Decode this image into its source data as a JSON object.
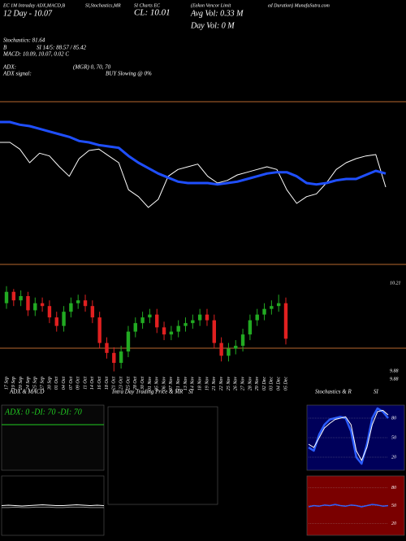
{
  "header": {
    "row1": [
      "EC 1M Intraday ADX,MACD,B",
      "SI,Stochastics,MR",
      "SI Charts EC",
      "(Eekon Vencor Limit",
      "ed Duration) MunafaSutra.com"
    ],
    "day": "12 Day - 10.07",
    "close": "CL: 10.01",
    "avg_vol": "Avg Vol: 0.33 M",
    "day_vol": "Day Vol: 0 M",
    "stoch": "Stochastics: 81.64",
    "b": "B",
    "si": "SI 14/5: 88.57 / 85.42",
    "macd": "MACD: 10.09, 10.07, 0.02 C",
    "adx": "ADX:",
    "adx_values": "(MGR) 0, 70, 70",
    "adx_signal": "ADX signal:",
    "signal": "BUY Slowing @ 0%"
  },
  "chart_data": [
    {
      "type": "line",
      "ylim": [
        9.4,
        10.6
      ],
      "series": [
        {
          "color": "#ffffff",
          "values": [
            10.3,
            10.3,
            10.25,
            10.15,
            10.22,
            10.2,
            10.12,
            10.05,
            10.18,
            10.24,
            10.25,
            10.2,
            10.15,
            9.95,
            9.9,
            9.82,
            9.88,
            10.05,
            10.1,
            10.12,
            10.14,
            10.05,
            10.0,
            10.02,
            10.06,
            10.08,
            10.1,
            10.12,
            10.1,
            9.95,
            9.85,
            9.9,
            9.92,
            10.0,
            10.1,
            10.15,
            10.18,
            10.2,
            10.21,
            9.97
          ]
        },
        {
          "color": "#1f4fff",
          "values": [
            10.45,
            10.45,
            10.43,
            10.42,
            10.4,
            10.38,
            10.36,
            10.34,
            10.31,
            10.3,
            10.28,
            10.27,
            10.26,
            10.2,
            10.15,
            10.11,
            10.07,
            10.04,
            10.01,
            10.0,
            10.0,
            10.0,
            9.99,
            10.0,
            10.01,
            10.03,
            10.05,
            10.07,
            10.08,
            10.08,
            10.05,
            10.0,
            9.99,
            10.0,
            10.02,
            10.03,
            10.03,
            10.06,
            10.09,
            10.07
          ]
        }
      ]
    },
    {
      "type": "candlestick",
      "ylim": [
        9.7,
        10.33
      ],
      "up_color": "#22aa22",
      "down_color": "#e02020",
      "x": [
        "17 Sep",
        "19 Sep",
        "20 Sep",
        "24 Sep",
        "25 Sep",
        "27 Sep",
        "30 Sep",
        "01 Oct",
        "04 Oct",
        "07 Oct",
        "09 Oct",
        "11 Oct",
        "14 Oct",
        "16 Oct",
        "18 Oct",
        "21 Oct",
        "23 Oct",
        "25 Oct",
        "28 Oct",
        "30 Oct",
        "01 Nov",
        "05 Nov",
        "06 Nov",
        "07 Nov",
        "11 Nov",
        "13 Nov",
        "14 Nov",
        "18 Nov",
        "19 Nov",
        "21 Nov",
        "22 Nov",
        "25 Nov",
        "26 Nov",
        "27 Nov",
        "28 Nov",
        "29 Nov",
        "02 Dec",
        "03 Dec",
        "04 Dec",
        "05 Dec"
      ],
      "ohlc": [
        [
          10.2,
          10.32,
          10.16,
          10.28
        ],
        [
          10.28,
          10.3,
          10.18,
          10.22
        ],
        [
          10.22,
          10.29,
          10.18,
          10.25
        ],
        [
          10.25,
          10.28,
          10.11,
          10.15
        ],
        [
          10.15,
          10.24,
          10.11,
          10.2
        ],
        [
          10.2,
          10.24,
          10.14,
          10.18
        ],
        [
          10.18,
          10.22,
          10.06,
          10.1
        ],
        [
          10.1,
          10.14,
          10.0,
          10.04
        ],
        [
          10.04,
          10.18,
          10.0,
          10.14
        ],
        [
          10.14,
          10.24,
          10.1,
          10.2
        ],
        [
          10.2,
          10.26,
          10.16,
          10.22
        ],
        [
          10.22,
          10.26,
          10.14,
          10.18
        ],
        [
          10.18,
          10.22,
          10.06,
          10.1
        ],
        [
          10.1,
          10.14,
          9.88,
          9.92
        ],
        [
          9.92,
          9.96,
          9.81,
          9.85
        ],
        [
          9.85,
          9.89,
          9.72,
          9.78
        ],
        [
          9.78,
          9.9,
          9.74,
          9.86
        ],
        [
          9.86,
          10.04,
          9.82,
          10.0
        ],
        [
          10.0,
          10.1,
          9.96,
          10.06
        ],
        [
          10.06,
          10.14,
          10.02,
          10.1
        ],
        [
          10.1,
          10.16,
          10.06,
          10.12
        ],
        [
          10.12,
          10.16,
          9.99,
          10.03
        ],
        [
          10.03,
          10.07,
          9.94,
          9.98
        ],
        [
          9.98,
          10.04,
          9.94,
          10.0
        ],
        [
          10.0,
          10.08,
          9.96,
          10.04
        ],
        [
          10.04,
          10.1,
          10.0,
          10.06
        ],
        [
          10.06,
          10.12,
          10.02,
          10.08
        ],
        [
          10.08,
          10.16,
          10.04,
          10.12
        ],
        [
          10.12,
          10.16,
          10.04,
          10.08
        ],
        [
          10.08,
          10.12,
          9.88,
          9.92
        ],
        [
          9.92,
          9.96,
          9.79,
          9.83
        ],
        [
          9.83,
          9.92,
          9.79,
          9.88
        ],
        [
          9.88,
          9.94,
          9.84,
          9.9
        ],
        [
          9.9,
          10.02,
          9.86,
          9.98
        ],
        [
          9.98,
          10.12,
          9.94,
          10.08
        ],
        [
          10.08,
          10.16,
          10.04,
          10.12
        ],
        [
          10.12,
          10.2,
          10.08,
          10.16
        ],
        [
          10.16,
          10.22,
          10.12,
          10.18
        ],
        [
          10.18,
          10.26,
          10.14,
          10.2
        ],
        [
          10.2,
          10.24,
          9.91,
          9.95
        ]
      ],
      "labels": [
        10.21,
        9.88,
        9.88
      ]
    },
    {
      "type": "line",
      "title": "ADX & MACD",
      "legend": "ADX: 0  -DI: 70  -DI: 70",
      "ylim": [
        0,
        100
      ],
      "series": [
        {
          "color": "#22cc22",
          "values": [
            70,
            70,
            70,
            70,
            70,
            70,
            70,
            70,
            70,
            70,
            70,
            70,
            70,
            70,
            70,
            70
          ]
        }
      ]
    },
    {
      "type": "line",
      "ylim": [
        10.0,
        10.15
      ],
      "series": [
        {
          "color": "#ffffff",
          "values": [
            10.075,
            10.076,
            10.075,
            10.074,
            10.075,
            10.076,
            10.077,
            10.076,
            10.075,
            10.075,
            10.076,
            10.077,
            10.076,
            10.075,
            10.076,
            10.075
          ]
        },
        {
          "color": "#888888",
          "values": [
            10.07,
            10.07,
            10.071,
            10.07,
            10.07,
            10.071,
            10.071,
            10.071,
            10.07,
            10.07,
            10.071,
            10.071,
            10.071,
            10.07,
            10.07,
            10.07
          ]
        }
      ]
    },
    {
      "type": "line",
      "title": "Intra Day Trading Price & MR",
      "title2": "SI",
      "series": []
    },
    {
      "type": "line",
      "title": "Stochastics & R",
      "title2": "SI",
      "ylim": [
        0,
        100
      ],
      "yticks": [
        20,
        50,
        80
      ],
      "series": [
        {
          "color": "#2a5cff",
          "values": [
            35,
            30,
            55,
            70,
            78,
            80,
            82,
            80,
            60,
            20,
            10,
            40,
            80,
            95,
            90,
            80
          ]
        },
        {
          "color": "#ffffff",
          "values": [
            40,
            35,
            50,
            65,
            72,
            78,
            80,
            82,
            70,
            30,
            15,
            35,
            70,
            90,
            92,
            85
          ]
        }
      ]
    },
    {
      "type": "line",
      "ylim": [
        0,
        100
      ],
      "yticks": [
        20,
        50,
        80
      ],
      "series": [
        {
          "color": "#2a5cff",
          "values": [
            48,
            50,
            49,
            51,
            50,
            52,
            50,
            49,
            51,
            50,
            48,
            50,
            52,
            51,
            49,
            50
          ]
        }
      ]
    }
  ]
}
